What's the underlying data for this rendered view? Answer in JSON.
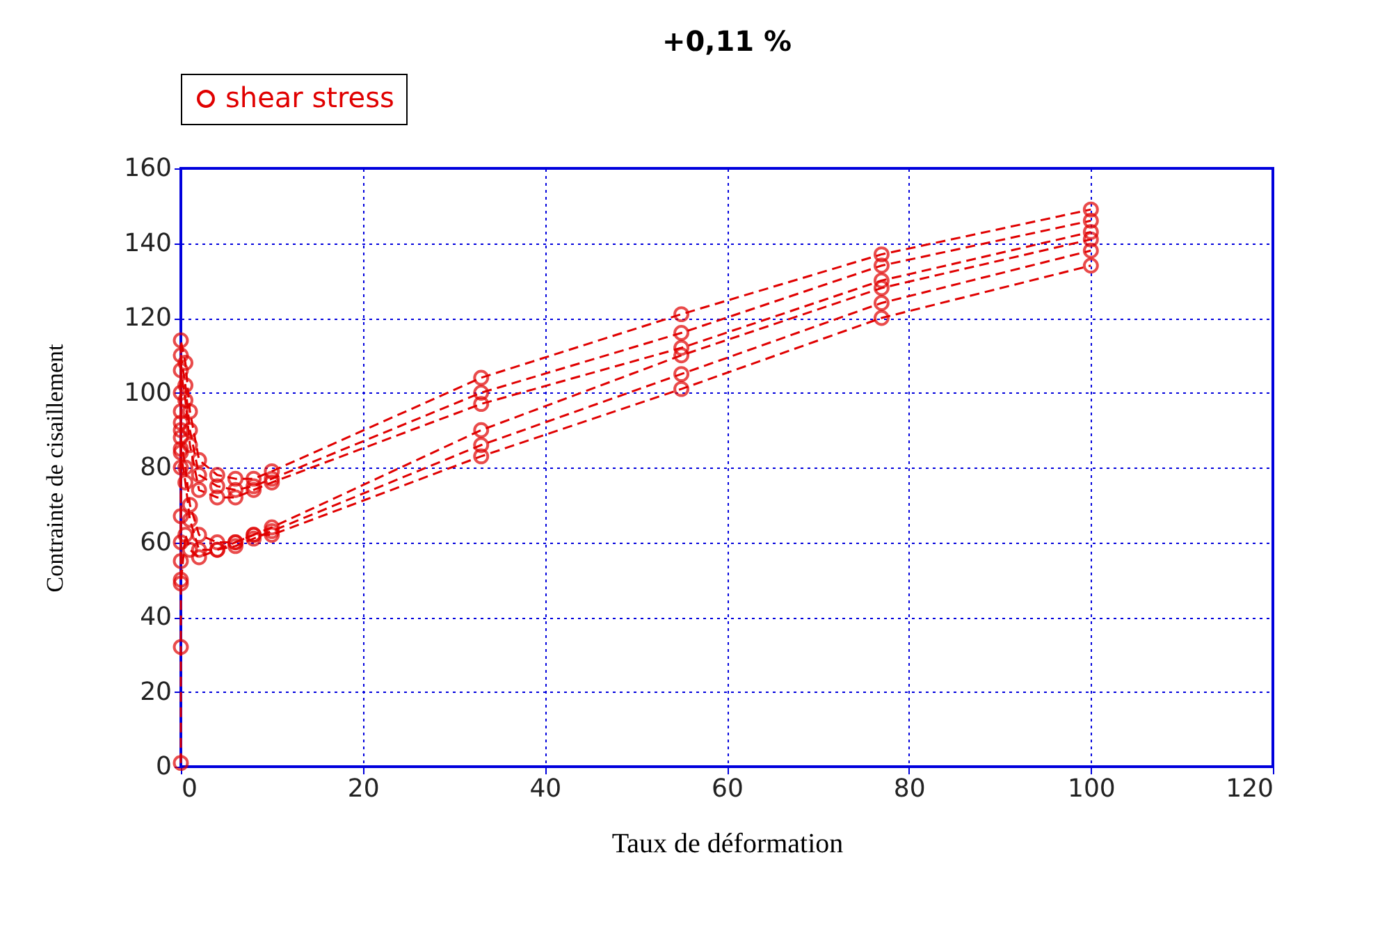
{
  "chart_data": {
    "type": "line",
    "title": "+0,11 %",
    "xlabel": "Taux de déformation",
    "ylabel": "Contrainte de cisaillement",
    "x": [
      0,
      0,
      0,
      0.5,
      1,
      2,
      4,
      6,
      8,
      10,
      33,
      55,
      77,
      100
    ],
    "series": [
      {
        "name": "shear stress",
        "color": "#e00000",
        "values": [
          90,
          100,
          114,
          108,
          95,
          82,
          78,
          77,
          77,
          79,
          104,
          121,
          137,
          149
        ]
      },
      {
        "color": "#e00000",
        "values": [
          85,
          95,
          110,
          102,
          90,
          78,
          75,
          74,
          75,
          77,
          100,
          116,
          134,
          146
        ]
      },
      {
        "color": "#e00000",
        "values": [
          80,
          92,
          106,
          98,
          86,
          74,
          72,
          72,
          74,
          76,
          97,
          112,
          130,
          143
        ]
      },
      {
        "color": "#e00000",
        "values": [
          55,
          67,
          88,
          80,
          70,
          62,
          60,
          60,
          62,
          64,
          90,
          110,
          128,
          141
        ]
      },
      {
        "color": "#e00000",
        "values": [
          50,
          60,
          84,
          76,
          66,
          58,
          58,
          59,
          61,
          63,
          86,
          105,
          124,
          138
        ]
      },
      {
        "color": "#e00000",
        "values": [
          1,
          32,
          49,
          62,
          58,
          56,
          58,
          60,
          62,
          62,
          83,
          101,
          120,
          134
        ]
      }
    ],
    "xlim": [
      0,
      120
    ],
    "xticks": [
      0,
      20,
      40,
      60,
      80,
      100,
      120
    ],
    "ylim": [
      0,
      160
    ],
    "yticks": [
      0,
      20,
      40,
      60,
      80,
      100,
      120,
      140,
      160
    ],
    "grid": true,
    "legend": "top left",
    "marker": "circle",
    "line_style": "dashed"
  }
}
